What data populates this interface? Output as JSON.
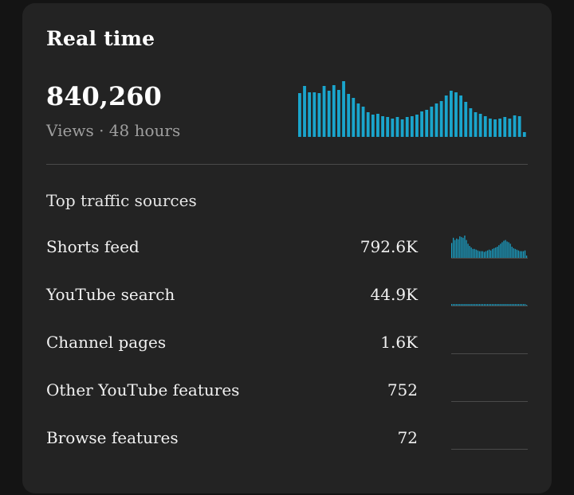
{
  "card": {
    "title": "Real time",
    "total_views": "840,260",
    "subtitle": "Views · 48 hours"
  },
  "colors": {
    "background": "#141414",
    "card": "#232323",
    "bar": "#1aa5cc",
    "divider": "#4a4a4a",
    "muted_text": "#9e9e9e"
  },
  "chart_data": {
    "type": "bar",
    "period": "48 hours",
    "values": [
      55,
      64,
      56,
      56,
      55,
      64,
      58,
      65,
      59,
      70,
      54,
      49,
      42,
      38,
      31,
      28,
      29,
      26,
      25,
      23,
      25,
      22,
      25,
      26,
      28,
      32,
      34,
      38,
      42,
      45,
      52,
      58,
      56,
      52,
      44,
      36,
      31,
      29,
      26,
      23,
      22,
      23,
      25,
      23,
      27,
      26,
      6
    ],
    "ylim": [
      0,
      72
    ]
  },
  "traffic": {
    "heading": "Top traffic sources",
    "sources": [
      {
        "label": "Shorts feed",
        "value": "792.6K",
        "spark": [
          20,
          27,
          24,
          26,
          25,
          29,
          28,
          27,
          30,
          24,
          19,
          16,
          14,
          12,
          12,
          11,
          10,
          9,
          9,
          9,
          8,
          9,
          10,
          11,
          10,
          12,
          13,
          14,
          15,
          17,
          19,
          21,
          23,
          24,
          22,
          21,
          19,
          15,
          13,
          12,
          11,
          10,
          9,
          9,
          9,
          10,
          3
        ]
      },
      {
        "label": "YouTube search",
        "value": "44.9K",
        "spark": [
          2,
          2,
          2,
          2,
          2,
          2,
          2,
          2,
          2,
          2,
          2,
          2,
          2,
          2,
          2,
          2,
          2,
          2,
          2,
          2,
          2,
          2,
          2,
          2,
          2,
          2,
          2,
          2,
          2,
          2,
          2,
          2,
          2,
          2,
          2,
          2,
          2,
          2,
          2,
          2,
          2,
          2,
          2,
          2,
          2,
          2,
          1
        ]
      },
      {
        "label": "Channel pages",
        "value": "1.6K",
        "spark": []
      },
      {
        "label": "Other YouTube features",
        "value": "752",
        "spark": []
      },
      {
        "label": "Browse features",
        "value": "72",
        "spark": []
      }
    ]
  }
}
